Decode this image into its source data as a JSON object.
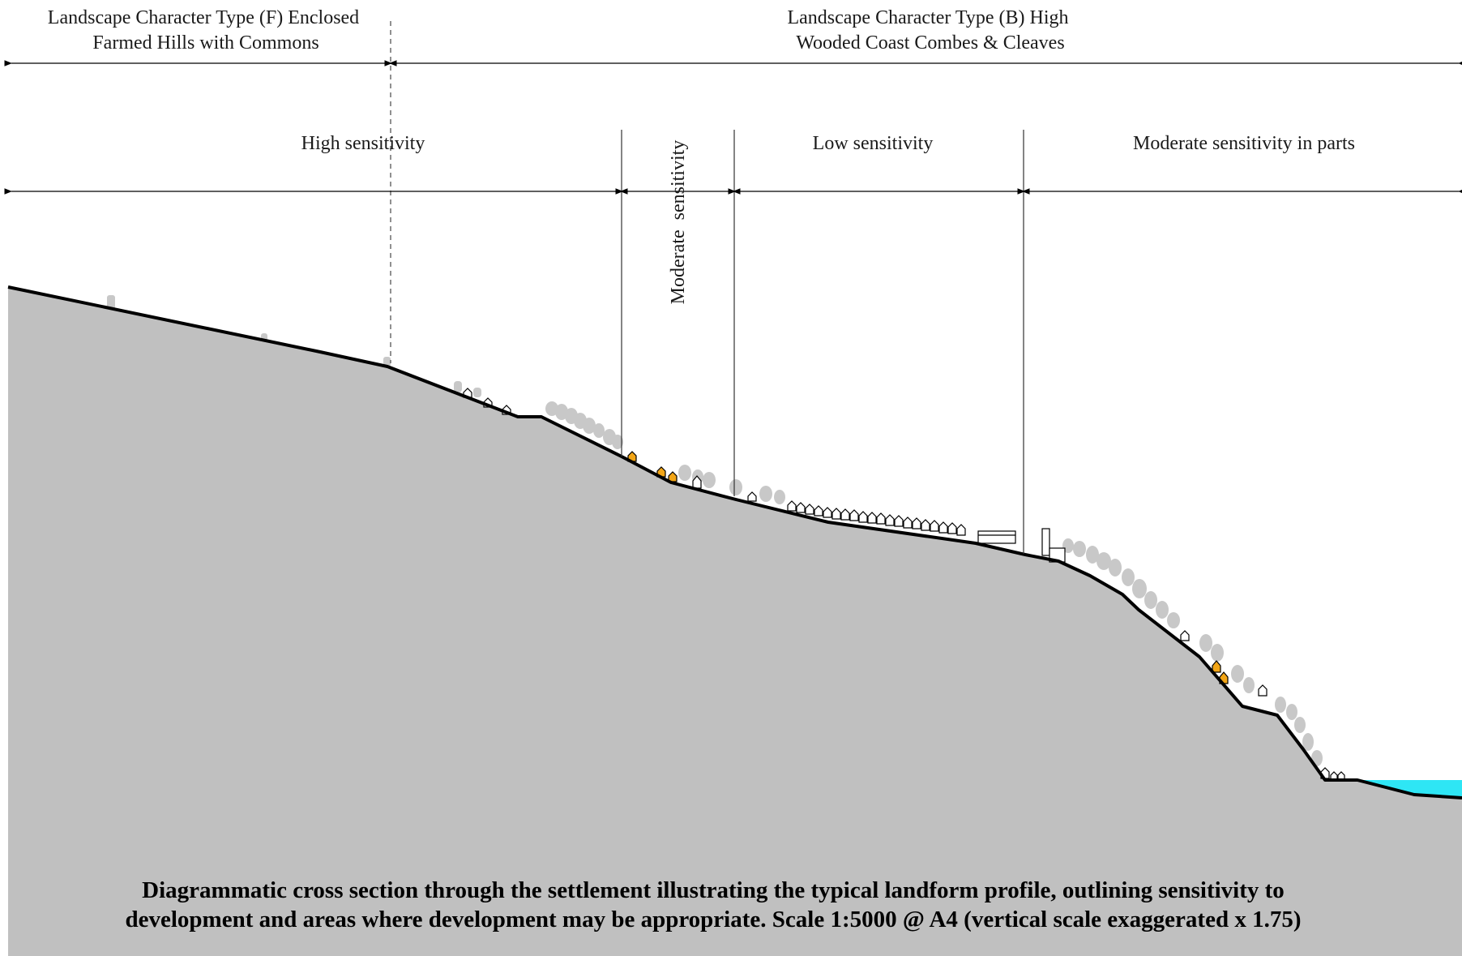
{
  "character_types": [
    {
      "line1": "Landscape Character Type (F) Enclosed",
      "line2": "Farmed Hills with Commons"
    },
    {
      "line1": "Landscape Character Type (B) High",
      "line2": "Wooded Coast Combes & Cleaves"
    }
  ],
  "sensitivity_zones": [
    {
      "label": "High sensitivity"
    },
    {
      "label": "Moderate  sensitivity"
    },
    {
      "label": "Low sensitivity"
    },
    {
      "label": "Moderate sensitivity in parts"
    }
  ],
  "caption": {
    "line1": "Diagrammatic cross section through the settlement illustrating the typical landform profile, outlining sensitivity to",
    "line2": "development and areas where development may be appropriate. Scale 1:5000 @ A4 (vertical scale exaggerated x 1.75)"
  },
  "colors": {
    "ground": "#c0c0c0",
    "outline": "#000000",
    "vegetation": "#c8c8c8",
    "highlight_building": "#f2a516",
    "water": "#2ee6f5"
  }
}
